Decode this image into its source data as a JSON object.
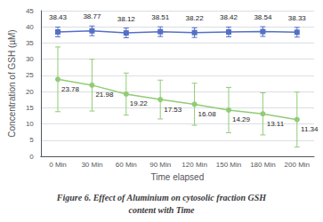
{
  "chart_data": {
    "type": "line",
    "title": "Figure 6. Effect of Aluminium on cytosolic fraction GSH",
    "subtitle": "content with Time",
    "xlabel": "Time elapsed",
    "ylabel": "Concentration of GSH (µM)",
    "categories": [
      "0 Min",
      "30 Min",
      "60 Min",
      "90 Min",
      "120 Min",
      "150 Min",
      "180 Min",
      "200 Min"
    ],
    "series": [
      {
        "values": [
          38.43,
          38.77,
          38.12,
          38.51,
          38.22,
          38.42,
          38.54,
          38.33
        ],
        "errors": [
          1.5,
          1.5,
          1.5,
          1.5,
          1.5,
          1.5,
          1.5,
          1.5
        ],
        "marker": "square"
      },
      {
        "values": [
          23.78,
          21.98,
          19.22,
          17.53,
          16.08,
          14.29,
          13.11,
          11.34
        ],
        "errors": [
          10.0,
          8.0,
          6.5,
          6.0,
          6.5,
          7.0,
          6.5,
          8.5
        ],
        "marker": "circle"
      }
    ],
    "ylim": [
      0,
      45
    ],
    "yticks": [
      0,
      5,
      10,
      15,
      20,
      25,
      30,
      35,
      40,
      45
    ],
    "grid": true,
    "data_labels": true
  }
}
